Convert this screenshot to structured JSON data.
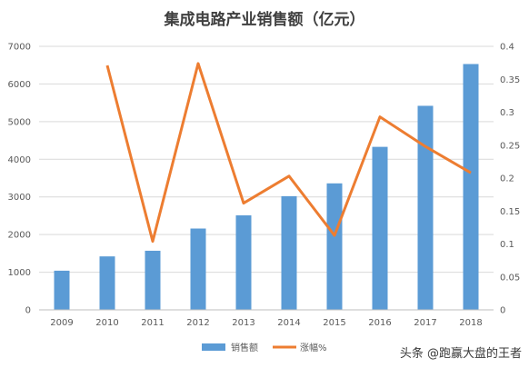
{
  "chart_data": {
    "type": "bar",
    "title": "集成电路产业销售额（亿元）",
    "categories": [
      "2009",
      "2010",
      "2011",
      "2012",
      "2013",
      "2014",
      "2015",
      "2016",
      "2017",
      "2018"
    ],
    "series": [
      {
        "name": "销售额",
        "type": "bar",
        "axis": "left",
        "color": "#5b9bd5",
        "values": [
          1040,
          1420,
          1570,
          2160,
          2510,
          3020,
          3360,
          4330,
          5420,
          6530
        ]
      },
      {
        "name": "涨幅%",
        "type": "line",
        "axis": "right",
        "color": "#ed7d31",
        "values": [
          null,
          0.371,
          0.104,
          0.374,
          0.162,
          0.203,
          0.113,
          0.293,
          0.248,
          0.208
        ]
      }
    ],
    "y_left": {
      "min": 0,
      "max": 7000,
      "ticks": [
        "0",
        "1000",
        "2000",
        "3000",
        "4000",
        "5000",
        "6000",
        "7000"
      ]
    },
    "y_right": {
      "min": 0,
      "max": 0.4,
      "ticks": [
        "0",
        "0.05",
        "0.1",
        "0.15",
        "0.2",
        "0.25",
        "0.3",
        "0.35",
        "0.4"
      ]
    },
    "grid": true,
    "legend_position": "bottom"
  },
  "watermark": "头条 @跑赢大盘的王者"
}
